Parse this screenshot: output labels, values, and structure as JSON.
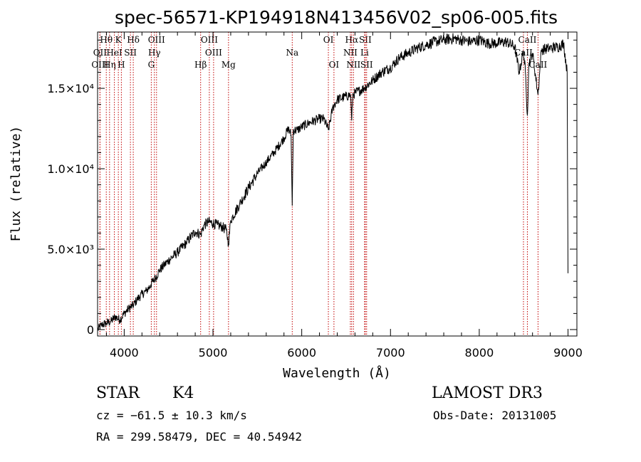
{
  "chart_data": {
    "type": "line",
    "title": "spec-56571-KP194918N413456V02_sp06-005.fits",
    "xlabel": "Wavelength (Å)",
    "ylabel": "Flux (relative)",
    "xlim": [
      3700,
      9100
    ],
    "ylim": [
      -400,
      18500
    ],
    "x_ticks": [
      4000,
      5000,
      6000,
      7000,
      8000,
      9000
    ],
    "x_tick_labels": [
      "4000",
      "5000",
      "6000",
      "7000",
      "8000",
      "9000"
    ],
    "y_ticks": [
      0,
      5000,
      10000,
      15000
    ],
    "y_tick_labels": [
      "0",
      "5.0×10³",
      "1.0×10⁴",
      "1.5×10⁴"
    ],
    "series": [
      {
        "name": "flux",
        "x": [
          3700,
          3750,
          3800,
          3850,
          3900,
          3950,
          4000,
          4050,
          4100,
          4150,
          4200,
          4250,
          4300,
          4350,
          4400,
          4450,
          4500,
          4600,
          4700,
          4800,
          4861,
          4900,
          4950,
          5000,
          5050,
          5100,
          5150,
          5175,
          5200,
          5300,
          5400,
          5500,
          5600,
          5700,
          5800,
          5850,
          5880,
          5893,
          5905,
          5950,
          6000,
          6100,
          6200,
          6250,
          6300,
          6350,
          6400,
          6500,
          6550,
          6563,
          6575,
          6600,
          6700,
          6800,
          6900,
          7000,
          7100,
          7200,
          7300,
          7400,
          7500,
          7600,
          7700,
          7800,
          7900,
          8000,
          8100,
          8200,
          8300,
          8400,
          8450,
          8498,
          8520,
          8542,
          8560,
          8600,
          8662,
          8700,
          8800,
          8900,
          8950,
          8990,
          9000
        ],
        "y": [
          0,
          300,
          400,
          500,
          800,
          600,
          1000,
          1300,
          1500,
          1900,
          2200,
          2400,
          2800,
          3200,
          3700,
          4000,
          4300,
          4800,
          5400,
          6100,
          5900,
          6500,
          6700,
          6600,
          6500,
          6400,
          6200,
          5300,
          6800,
          7800,
          8800,
          9700,
          10400,
          11100,
          11900,
          12500,
          12100,
          7700,
          12400,
          12400,
          12600,
          12900,
          13100,
          13100,
          12400,
          13800,
          14300,
          14500,
          14600,
          13000,
          14600,
          14700,
          15000,
          15500,
          16000,
          16300,
          16900,
          17200,
          17500,
          17700,
          17900,
          18000,
          18100,
          18000,
          17900,
          18000,
          17800,
          17800,
          17900,
          17600,
          16000,
          17300,
          16000,
          13300,
          16600,
          17200,
          14600,
          17400,
          17500,
          17600,
          17800,
          16000,
          3500
        ]
      }
    ],
    "line_markers": [
      {
        "name": "Hθ",
        "wavelength": 3798,
        "row": 0
      },
      {
        "name": "OII",
        "wavelength": 3727,
        "row": 1
      },
      {
        "name": "OIII",
        "wavelength": 3727,
        "row": 2
      },
      {
        "name": "K",
        "wavelength": 3934,
        "row": 0
      },
      {
        "name": "Hη",
        "wavelength": 3835,
        "row": 2
      },
      {
        "name": "HeI",
        "wavelength": 3889,
        "row": 1
      },
      {
        "name": "H",
        "wavelength": 3968,
        "row": 2
      },
      {
        "name": "SII",
        "wavelength": 4070,
        "row": 1
      },
      {
        "name": "Hδ",
        "wavelength": 4102,
        "row": 0
      },
      {
        "name": "OIII",
        "wavelength": 4364,
        "row": 0
      },
      {
        "name": "Hγ",
        "wavelength": 4340,
        "row": 1
      },
      {
        "name": "G",
        "wavelength": 4305,
        "row": 2
      },
      {
        "name": "OIII",
        "wavelength": 4959,
        "row": 0
      },
      {
        "name": "OIII",
        "wavelength": 5007,
        "row": 1
      },
      {
        "name": "Hβ",
        "wavelength": 4861,
        "row": 2
      },
      {
        "name": "Mg",
        "wavelength": 5175,
        "row": 2
      },
      {
        "name": "Na",
        "wavelength": 5893,
        "row": 1
      },
      {
        "name": "OI",
        "wavelength": 6300,
        "row": 0
      },
      {
        "name": "OI",
        "wavelength": 6363,
        "row": 2
      },
      {
        "name": "Hα",
        "wavelength": 6563,
        "row": 0
      },
      {
        "name": "SII",
        "wavelength": 6716,
        "row": 0
      },
      {
        "name": "NII",
        "wavelength": 6548,
        "row": 1
      },
      {
        "name": "Li",
        "wavelength": 6708,
        "row": 1
      },
      {
        "name": "NII",
        "wavelength": 6583,
        "row": 2
      },
      {
        "name": "SII",
        "wavelength": 6731,
        "row": 2
      },
      {
        "name": "CaII",
        "wavelength": 8542,
        "row": 0
      },
      {
        "name": "CaII",
        "wavelength": 8498,
        "row": 1
      },
      {
        "name": "CaII",
        "wavelength": 8662,
        "row": 2
      }
    ],
    "marker_color": "#c00000",
    "line_color": "#000000"
  },
  "info": {
    "object_class": "STAR",
    "subclass": "K4",
    "survey": "LAMOST DR3",
    "redshift": "cz = −61.5 ± 10.3 km/s",
    "obs_date": "Obs-Date: 20131005",
    "coords": "RA = 299.58479, DEC =  40.54942"
  }
}
